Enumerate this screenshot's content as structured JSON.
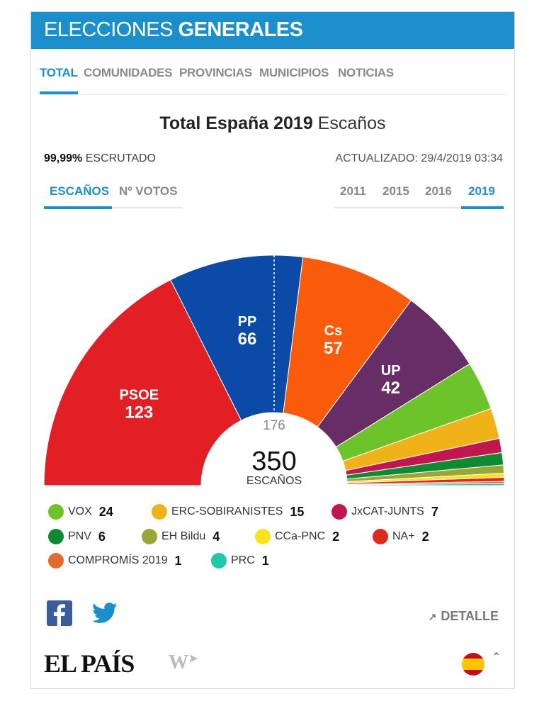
{
  "header": {
    "title_light": "ELECCIONES",
    "title_bold": "GENERALES"
  },
  "nav": {
    "tabs": [
      "TOTAL",
      "COMUNIDADES",
      "PROVINCIAS",
      "MUNICIPIOS",
      "NOTICIAS"
    ],
    "active": "TOTAL"
  },
  "title": {
    "main": "Total España 2019",
    "sub": "Escaños"
  },
  "status": {
    "percent": "99,99%",
    "scrutinized_label": "ESCRUTADO",
    "updated_label": "ACTUALIZADO:",
    "updated_value": "29/4/2019 03:34"
  },
  "view_tabs": {
    "seats": "ESCAÑOS",
    "votes": "Nº VOTOS"
  },
  "years": [
    "2011",
    "2015",
    "2016",
    "2019"
  ],
  "active_year": "2019",
  "chart_data": {
    "type": "pie",
    "subtype": "parliament-hemicycle",
    "title": "Total España 2019",
    "total_seats": 350,
    "total_label": "350",
    "total_unit": "ESCAÑOS",
    "majority": 176,
    "majority_label": "176",
    "series": [
      {
        "name": "PSOE",
        "value": 123,
        "color": "#e31f26"
      },
      {
        "name": "PP",
        "value": 66,
        "color": "#0c4aa8"
      },
      {
        "name": "Cs",
        "value": 57,
        "color": "#f95b0a"
      },
      {
        "name": "UP",
        "value": 42,
        "color": "#662d66"
      },
      {
        "name": "VOX",
        "value": 24,
        "color": "#6cc42a"
      },
      {
        "name": "ERC-SOBIRANISTES",
        "value": 15,
        "color": "#f1b219"
      },
      {
        "name": "JxCAT-JUNTS",
        "value": 7,
        "color": "#c0174f"
      },
      {
        "name": "PNV",
        "value": 6,
        "color": "#108a32"
      },
      {
        "name": "EH Bildu",
        "value": 4,
        "color": "#9ba63a"
      },
      {
        "name": "CCa-PNC",
        "value": 2,
        "color": "#fbe21d"
      },
      {
        "name": "NA+",
        "value": 2,
        "color": "#dc2a1c"
      },
      {
        "name": "COMPROMÍS 2019",
        "value": 1,
        "color": "#e56a2d"
      },
      {
        "name": "PRC",
        "value": 1,
        "color": "#21c8a7"
      }
    ],
    "labeled_parties": [
      "PSOE",
      "PP",
      "Cs",
      "UP"
    ]
  },
  "footer": {
    "detail": "DETALLE",
    "logo": "EL PAÍS",
    "brand_mark": "W"
  }
}
